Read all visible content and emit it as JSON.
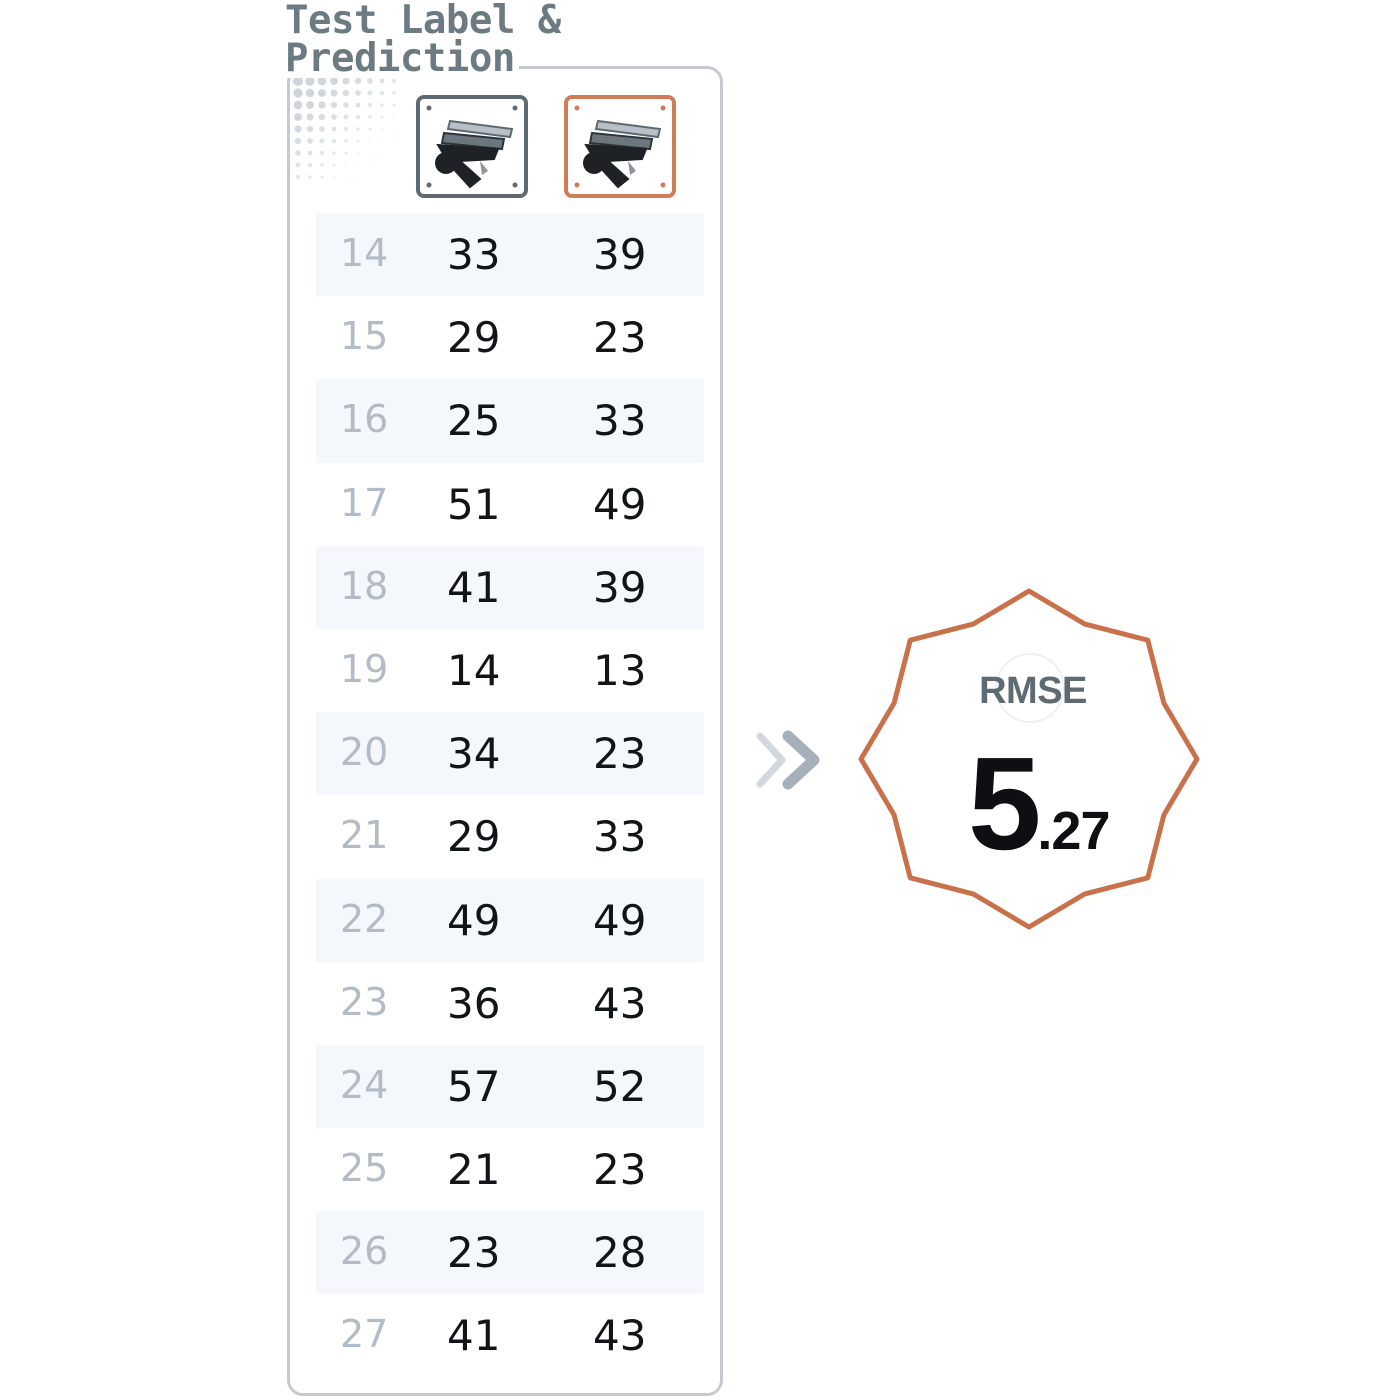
{
  "title": {
    "line1": "Test Label &",
    "line2": "Prediction"
  },
  "columns": {
    "label_icon": "hammer-tools-icon",
    "prediction_icon": "hammer-tools-icon",
    "label_border_color": "#5d6a72",
    "prediction_border_color": "#d07c57"
  },
  "rows": [
    {
      "index": "14",
      "label": "33",
      "prediction": "39"
    },
    {
      "index": "15",
      "label": "29",
      "prediction": "23"
    },
    {
      "index": "16",
      "label": "25",
      "prediction": "33"
    },
    {
      "index": "17",
      "label": "51",
      "prediction": "49"
    },
    {
      "index": "18",
      "label": "41",
      "prediction": "39"
    },
    {
      "index": "19",
      "label": "14",
      "prediction": "13"
    },
    {
      "index": "20",
      "label": "34",
      "prediction": "23"
    },
    {
      "index": "21",
      "label": "29",
      "prediction": "33"
    },
    {
      "index": "22",
      "label": "49",
      "prediction": "49"
    },
    {
      "index": "23",
      "label": "36",
      "prediction": "43"
    },
    {
      "index": "24",
      "label": "57",
      "prediction": "52"
    },
    {
      "index": "25",
      "label": "21",
      "prediction": "23"
    },
    {
      "index": "26",
      "label": "23",
      "prediction": "28"
    },
    {
      "index": "27",
      "label": "41",
      "prediction": "43"
    }
  ],
  "arrow_icon": "double-chevron-right-icon",
  "metric": {
    "name": "RMSE",
    "value_int": "5",
    "value_frac": ".27",
    "badge_color": "#c8714a"
  }
}
